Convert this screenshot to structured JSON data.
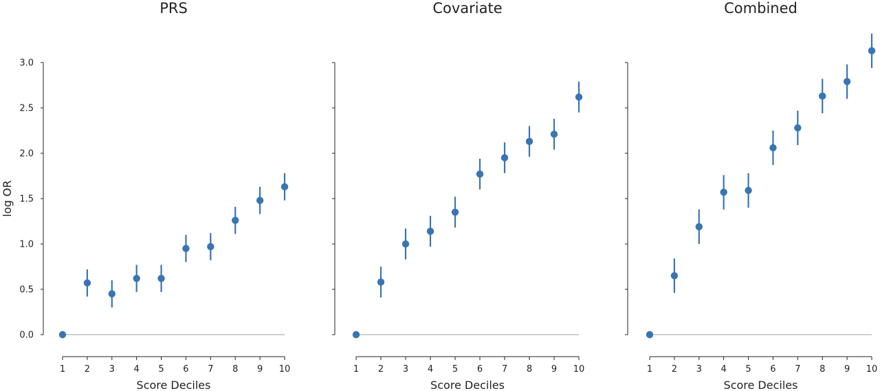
{
  "chart_data": [
    {
      "type": "scatter",
      "title": "PRS",
      "xlabel": "Score Deciles",
      "ylabel": "log OR",
      "x": [
        1,
        2,
        3,
        4,
        5,
        6,
        7,
        8,
        9,
        10
      ],
      "y": [
        0.0,
        0.57,
        0.45,
        0.62,
        0.62,
        0.95,
        0.97,
        1.26,
        1.48,
        1.63
      ],
      "y_lower": [
        null,
        0.42,
        0.3,
        0.47,
        0.47,
        0.8,
        0.82,
        1.11,
        1.33,
        1.48
      ],
      "y_upper": [
        null,
        0.72,
        0.6,
        0.77,
        0.77,
        1.1,
        1.12,
        1.41,
        1.63,
        1.78
      ],
      "ylim": [
        -0.25,
        3.05
      ],
      "yticks": [
        "0.0",
        "0.5",
        "1.0",
        "1.5",
        "2.0",
        "2.5",
        "3.0"
      ],
      "xticks": [
        "1",
        "2",
        "3",
        "4",
        "5",
        "6",
        "7",
        "8",
        "9",
        "10"
      ],
      "reference_line_y": 0,
      "grid": false
    },
    {
      "type": "scatter",
      "title": "Covariate",
      "xlabel": "Score Deciles",
      "ylabel": "",
      "x": [
        1,
        2,
        3,
        4,
        5,
        6,
        7,
        8,
        9,
        10
      ],
      "y": [
        0.0,
        0.58,
        1.0,
        1.14,
        1.35,
        1.77,
        1.95,
        2.13,
        2.21,
        2.62
      ],
      "y_lower": [
        null,
        0.41,
        0.83,
        0.97,
        1.18,
        1.6,
        1.78,
        1.96,
        2.04,
        2.45
      ],
      "y_upper": [
        null,
        0.75,
        1.17,
        1.31,
        1.52,
        1.94,
        2.12,
        2.3,
        2.38,
        2.79
      ],
      "ylim": [
        -0.25,
        3.05
      ],
      "xticks": [
        "1",
        "2",
        "3",
        "4",
        "5",
        "6",
        "7",
        "8",
        "9",
        "10"
      ],
      "reference_line_y": 0,
      "grid": false
    },
    {
      "type": "scatter",
      "title": "Combined",
      "xlabel": "Score Deciles",
      "ylabel": "",
      "x": [
        1,
        2,
        3,
        4,
        5,
        6,
        7,
        8,
        9,
        10
      ],
      "y": [
        0.0,
        0.65,
        1.19,
        1.57,
        1.59,
        2.06,
        2.28,
        2.63,
        2.79,
        3.13
      ],
      "y_lower": [
        null,
        0.46,
        1.0,
        1.38,
        1.4,
        1.87,
        2.09,
        2.44,
        2.6,
        2.94
      ],
      "y_upper": [
        null,
        0.84,
        1.38,
        1.76,
        1.78,
        2.25,
        2.47,
        2.82,
        2.98,
        3.32
      ],
      "ylim": [
        -0.25,
        3.05
      ],
      "xticks": [
        "1",
        "2",
        "3",
        "4",
        "5",
        "6",
        "7",
        "8",
        "9",
        "10"
      ],
      "reference_line_y": 0,
      "grid": false
    }
  ],
  "colors": {
    "points": "#3a74b3",
    "reference_line": "#d0d0d0",
    "axis": "#222222"
  }
}
